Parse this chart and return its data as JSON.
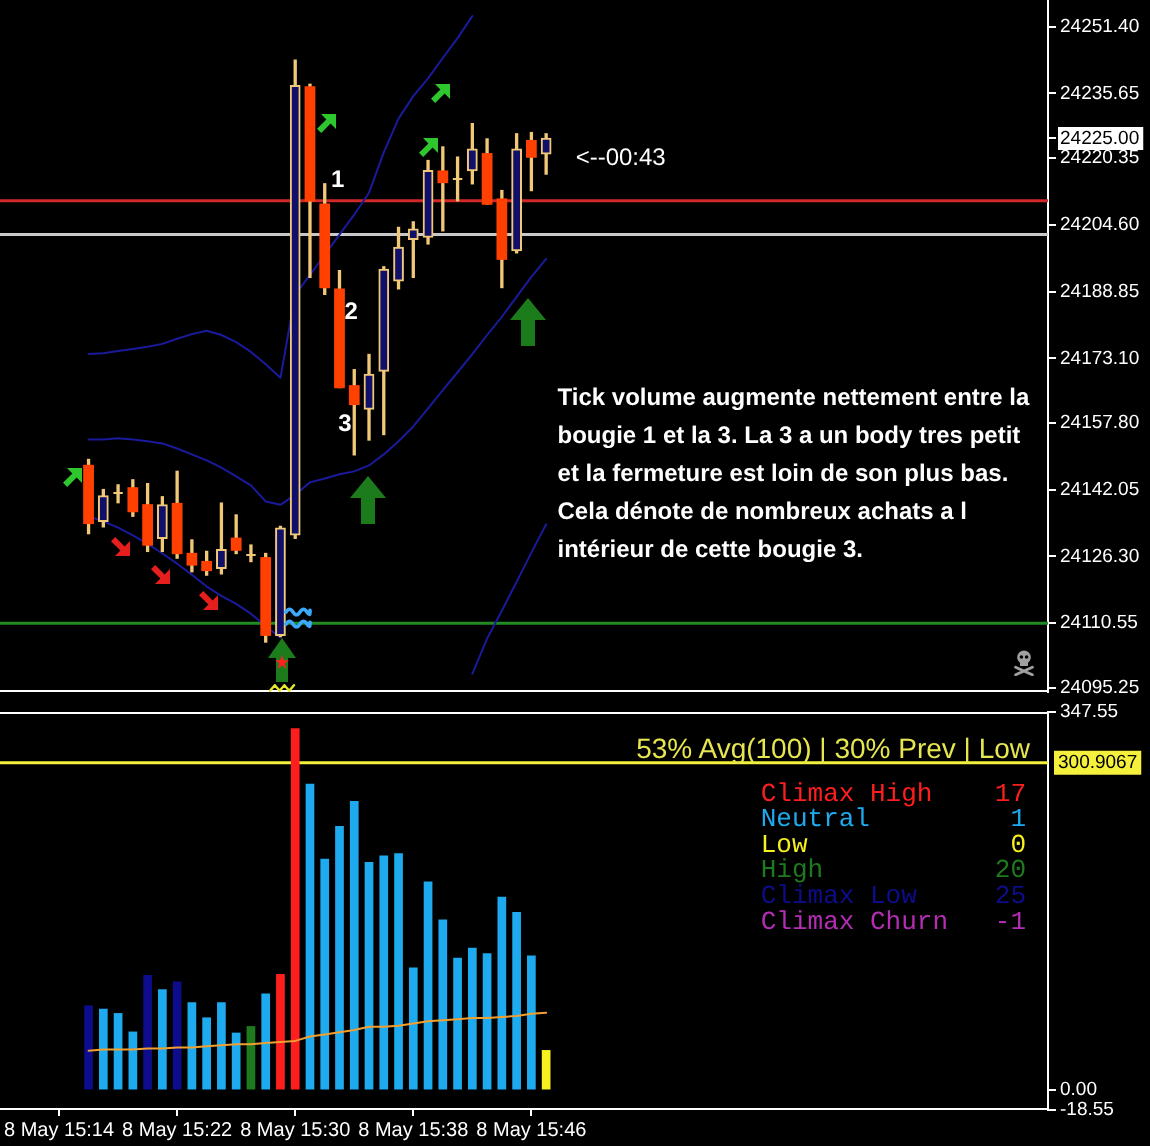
{
  "chart_data": [
    {
      "type": "candlestick",
      "x": [
        "--05-08T15:16",
        "--05-08T15:17",
        "--05-08T15:18",
        "--05-08T15:19",
        "--05-08T15:20",
        "--05-08T15:21",
        "--05-08T15:22",
        "--05-08T15:23",
        "--05-08T15:24",
        "--05-08T15:25",
        "--05-08T15:26",
        "--05-08T15:27",
        "--05-08T15:28",
        "--05-08T15:29",
        "--05-08T15:30",
        "--05-08T15:31",
        "--05-08T15:32",
        "--05-08T15:33",
        "--05-08T15:34",
        "--05-08T15:35",
        "--05-08T15:36",
        "--05-08T15:37",
        "--05-08T15:38",
        "--05-08T15:39",
        "--05-08T15:40",
        "--05-08T15:41",
        "--05-08T15:42",
        "--05-08T15:43",
        "--05-08T15:44",
        "--05-08T15:45",
        "--05-08T15:46",
        "--05-08T15:47"
      ],
      "ohlc": [
        [
          24147.8,
          24149.2,
          24131.7,
          24134.1
        ],
        [
          24134.6,
          24142.1,
          24133.3,
          24140.6
        ],
        [
          24141.7,
          24143.2,
          24139.0,
          24141.7
        ],
        [
          24142.5,
          24144.4,
          24135.8,
          24136.9
        ],
        [
          24138.5,
          24143.5,
          24127.5,
          24129.0
        ],
        [
          24130.6,
          24140.4,
          24127.5,
          24138.5
        ],
        [
          24138.8,
          24146.4,
          24125.9,
          24127.0
        ],
        [
          24127.0,
          24130.2,
          24122.7,
          24124.3
        ],
        [
          24125.1,
          24127.5,
          24121.9,
          24123.0
        ],
        [
          24123.5,
          24138.9,
          24122.2,
          24127.9
        ],
        [
          24130.6,
          24136.1,
          24127.0,
          24127.8
        ],
        [
          24127.0,
          24129.0,
          24125.1,
          24127.0
        ],
        [
          24126.0,
          24127.0,
          24106.1,
          24107.7
        ],
        [
          24107.7,
          24133.4,
          24107.4,
          24133.0
        ],
        [
          24131.4,
          24243.5,
          24130.6,
          24237.5
        ],
        [
          24237.2,
          24237.8,
          24192.2,
          24210.3
        ],
        [
          24209.5,
          24214.3,
          24188.2,
          24189.8
        ],
        [
          24189.4,
          24193.8,
          24166.2,
          24166.2
        ],
        [
          24166.6,
          24170.4,
          24150.3,
          24162.2
        ],
        [
          24161.1,
          24174.0,
          24153.8,
          24169.3
        ],
        [
          24170.1,
          24194.7,
          24155.1,
          24194.1
        ],
        [
          24191.4,
          24204.0,
          24189.5,
          24199.3
        ],
        [
          24201.2,
          24205.3,
          24192.2,
          24203.6
        ],
        [
          24201.7,
          24219.8,
          24200.1,
          24217.4
        ],
        [
          24217.3,
          24223.0,
          24203.2,
          24214.6
        ],
        [
          24215.9,
          24220.6,
          24210.3,
          24215.9
        ],
        [
          24217.4,
          24228.5,
          24214.3,
          24222.5
        ],
        [
          24221.4,
          24224.9,
          24209.5,
          24209.5
        ],
        [
          24210.7,
          24212.7,
          24189.8,
          24196.5
        ],
        [
          24198.5,
          24226.1,
          24198.0,
          24222.5
        ],
        [
          24224.5,
          24226.4,
          24212.7,
          24220.6
        ],
        [
          24221.4,
          24226.1,
          24216.6,
          24225.0
        ]
      ],
      "color": "#f0c878",
      "colors": [
        "#ff4000",
        "#f0c878",
        "#f0c878",
        "#ff4000",
        "#ff4000",
        "#f0c878",
        "#ff4000",
        "#ff4000",
        "#ff4000",
        "#f0c878",
        "#ff4000",
        "#f0c878",
        "#ff4000",
        "#f0c878",
        "#f0c878",
        "#ff4000",
        "#ff4000",
        "#ff4000",
        "#ff4000",
        "#f0c878",
        "#f0c878",
        "#f0c878",
        "#f0c878",
        "#f0c878",
        "#ff4000",
        "#f0c878",
        "#f0c878",
        "#ff4000",
        "#ff4000",
        "#f0c878",
        "#ff4000",
        "#f0c878"
      ],
      "series": [
        {
          "type": "line",
          "color": "#1a1a9c",
          "x": [
            "--05-08T15:16",
            "--05-08T15:17",
            "--05-08T15:18",
            "--05-08T15:19",
            "--05-08T15:20",
            "--05-08T15:21",
            "--05-08T15:22",
            "--05-08T15:23",
            "--05-08T15:24",
            "--05-08T15:25",
            "--05-08T15:26",
            "--05-08T15:27",
            "--05-08T15:28",
            "--05-08T15:29",
            "--05-08T15:30",
            "--05-08T15:31",
            "--05-08T15:32",
            "--05-08T15:33",
            "--05-08T15:34",
            "--05-08T15:35",
            "--05-08T15:36",
            "--05-08T15:37",
            "--05-08T15:38",
            "--05-08T15:39",
            "--05-08T15:40",
            "--05-08T15:41",
            "--05-08T15:42"
          ],
          "values": [
            24174.1,
            24174.3,
            24174.8,
            24175.3,
            24175.8,
            24176.5,
            24177.7,
            24178.8,
            24179.6,
            24178.6,
            24176.9,
            24174.6,
            24171.7,
            24168.5,
            24188.1,
            24192.8,
            24197.5,
            24202.3,
            24207.0,
            24212.2,
            24221.7,
            24229.7,
            24235.0,
            24239.2,
            24244.0,
            24248.7,
            24253.9
          ]
        },
        {
          "type": "line",
          "color": "#1a1a9c",
          "values": [
            24153.9,
            24153.9,
            24154.2,
            24153.9,
            24153.5,
            24153.0,
            24151.8,
            24150.4,
            24149.0,
            24147.3,
            24145.2,
            24143.1,
            24139.3,
            24138.5,
            24140.9,
            24143.8,
            24144.7,
            24145.7,
            24146.4,
            24147.8,
            24150.4,
            24153.5,
            24157.0,
            24161.3,
            24165.6,
            24169.8,
            24174.1,
            24178.6,
            24182.9,
            24187.6,
            24192.3,
            24196.6
          ]
        },
        {
          "type": "line",
          "color": "#1a1a9c",
          "values": [
            24135.8,
            24134.6,
            24133.1,
            24131.3,
            24129.3,
            24127.0,
            24124.6,
            24122.0,
            24119.2,
            24117.0,
            24115.1,
            24112.8,
            24109.9,
            24107.1,
            null,
            null,
            null,
            null,
            null,
            null,
            null,
            null,
            null,
            null,
            null,
            null,
            24098.6,
            24106.9,
            24113.5,
            24120.3,
            24127.2,
            24133.9
          ]
        }
      ],
      "ref_lines": [
        {
          "axis": "y",
          "value": 24210.3,
          "color": "#d22828"
        },
        {
          "axis": "y",
          "value": 24202.3,
          "color": "#c8c8c8"
        },
        {
          "axis": "y",
          "value": 24110.55,
          "color": "#228b22"
        }
      ],
      "annotations": [
        "1",
        "2",
        "3",
        "<--00:43",
        "Tick volume augmente nettement entre la bougie 1 et la 3. La 3 a un body tres petit et la fermeture est loin de son plus bas. Cela dénote de nombreux achats a l intérieur de cette bougie 3."
      ],
      "xlim": [
        "--05-08T15:10",
        "--05-08T16:21"
      ],
      "ylim": [
        24094.3,
        24257.7
      ],
      "yticks": [
        {
          "value": 24251.4,
          "label": "24251.40"
        },
        24235.65,
        {
          "value": 24225,
          "label": "24225.00"
        },
        24220.35,
        {
          "value": 24204.6,
          "label": "24204.60"
        },
        24188.85,
        {
          "value": 24173.1,
          "label": "24173.10"
        },
        {
          "value": 24157.8,
          "label": "24157.80"
        },
        24142.05,
        {
          "value": 24126.3,
          "label": "24126.30"
        },
        24110.55,
        24095.25
      ],
      "tick_labels": "y"
    },
    {
      "type": "bar",
      "x": [
        "--05-08T15:16",
        "--05-08T15:17",
        "--05-08T15:18",
        "--05-08T15:19",
        "--05-08T15:20",
        "--05-08T15:21",
        "--05-08T15:22",
        "--05-08T15:23",
        "--05-08T15:24",
        "--05-08T15:25",
        "--05-08T15:26",
        "--05-08T15:27",
        "--05-08T15:28",
        "--05-08T15:29",
        "--05-08T15:30",
        "--05-08T15:31",
        "--05-08T15:32",
        "--05-08T15:33",
        "--05-08T15:34",
        "--05-08T15:35",
        "--05-08T15:36",
        "--05-08T15:37",
        "--05-08T15:38",
        "--05-08T15:39",
        "--05-08T15:40",
        "--05-08T15:41",
        "--05-08T15:42",
        "--05-08T15:43",
        "--05-08T15:44",
        "--05-08T15:45",
        "--05-08T15:46",
        "--05-08T15:47"
      ],
      "series": [
        {
          "name": "Climax High    17",
          "color": "#ff1e1e",
          "values": [
            null,
            null,
            null,
            null,
            null,
            null,
            null,
            null,
            null,
            null,
            null,
            null,
            null,
            106,
            332,
            null,
            null,
            null,
            null,
            null,
            null,
            null,
            null,
            null,
            null,
            null,
            null,
            null,
            null,
            null,
            null,
            null
          ]
        },
        {
          "name": "Neutral         1",
          "color": "#1eaaee",
          "values": [
            null,
            74,
            70,
            53,
            null,
            92,
            null,
            80,
            66,
            80,
            52,
            null,
            88,
            null,
            null,
            281,
            212,
            242,
            265,
            209,
            215,
            217,
            112,
            191,
            156,
            121,
            130,
            125,
            177,
            163,
            123,
            null
          ]
        },
        {
          "name": "Low             0",
          "color": "#f5f01e",
          "values": [
            null,
            null,
            null,
            null,
            null,
            null,
            null,
            null,
            null,
            null,
            null,
            null,
            null,
            null,
            null,
            null,
            null,
            null,
            null,
            null,
            null,
            null,
            null,
            null,
            null,
            null,
            null,
            null,
            null,
            null,
            null,
            36
          ]
        },
        {
          "name": "High           20",
          "color": "#1e7a1e",
          "values": [
            null,
            null,
            null,
            null,
            null,
            null,
            null,
            null,
            null,
            null,
            null,
            58,
            null,
            null,
            null,
            null,
            null,
            null,
            null,
            null,
            null,
            null,
            null,
            null,
            null,
            null,
            null,
            null,
            null,
            null,
            null,
            null
          ]
        },
        {
          "name": "Climax Low     25",
          "color": "#0c0c8c",
          "values": [
            77,
            null,
            null,
            null,
            105,
            null,
            99,
            null,
            null,
            null,
            null,
            null,
            null,
            null,
            null,
            null,
            null,
            null,
            null,
            null,
            null,
            null,
            null,
            null,
            null,
            null,
            null,
            null,
            null,
            null,
            null,
            null
          ]
        },
        {
          "name": "Climax Churn   -1",
          "color": "#b42db4",
          "values": [
            null,
            null,
            null,
            null,
            null,
            null,
            null,
            null,
            null,
            null,
            null,
            null,
            null,
            null,
            null,
            null,
            null,
            null,
            null,
            null,
            null,
            null,
            null,
            null,
            null,
            null,
            null,
            null,
            null,
            null,
            null,
            null
          ]
        },
        {
          "type": "line",
          "color": "#f0a030",
          "values": [
            36,
            37,
            37,
            37,
            38,
            38,
            39,
            39,
            40,
            41,
            42,
            42,
            43,
            44,
            45,
            49,
            51,
            53,
            55,
            58,
            58,
            59,
            61,
            63,
            64,
            65,
            66,
            66,
            67,
            68,
            70,
            71
          ]
        }
      ],
      "ref_lines": [
        {
          "axis": "y",
          "value": 300.9067,
          "label": "300.9067",
          "color": "#f5f03c"
        }
      ],
      "annotations": [
        "53% Avg(100) | 30% Prev | Low"
      ],
      "legend": "top right",
      "xlim": [
        "--05-08T15:10",
        "--05-08T16:21"
      ],
      "xticks": [
        {
          "value": "--05-08T15:14",
          "label": "8 May 15:14"
        },
        {
          "value": "--05-08T15:22",
          "label": "8 May 15:22"
        },
        {
          "value": "--05-08T15:30",
          "label": "8 May 15:30"
        },
        {
          "value": "--05-08T15:38",
          "label": "8 May 15:38"
        },
        {
          "value": "--05-08T15:46",
          "label": "8 May 15:46"
        }
      ],
      "ylim": [
        -18.55,
        347.55
      ],
      "yticks": [
        347.55,
        {
          "value": 0,
          "label": "0.00"
        },
        -18.55
      ]
    }
  ]
}
